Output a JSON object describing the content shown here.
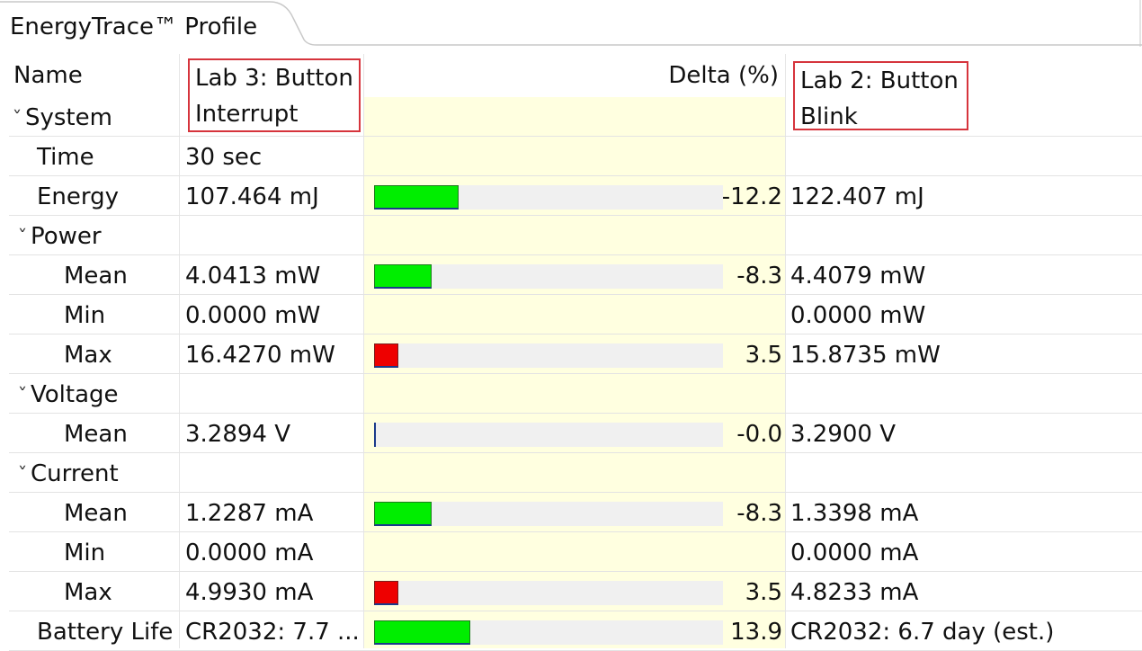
{
  "tab": {
    "title": "EnergyTrace™ Profile"
  },
  "header": {
    "name": "Name",
    "col_a": "Lab 3: Button Interrupt",
    "delta": "Delta (%)",
    "col_b": "Lab 2: Button Blink"
  },
  "rows": [
    {
      "name": "System",
      "indent": 0,
      "expander": "chevron-down",
      "a": "",
      "delta": "",
      "b": "",
      "bar": null
    },
    {
      "name": "Time",
      "indent": 1,
      "a": "30 sec",
      "delta": "",
      "b": "",
      "bar": null
    },
    {
      "name": "Energy",
      "indent": 1,
      "a": "107.464 mJ",
      "delta": "-12.2",
      "b": "122.407 mJ",
      "bar": 12.2,
      "bar_sign": "neg"
    },
    {
      "name": "Power",
      "indent": 1,
      "expander": "chevron-down",
      "a": "",
      "delta": "",
      "b": "",
      "bar": null
    },
    {
      "name": "Mean",
      "indent": 2,
      "a": "4.0413 mW",
      "delta": "-8.3",
      "b": "4.4079 mW",
      "bar": 8.3,
      "bar_sign": "neg"
    },
    {
      "name": "Min",
      "indent": 2,
      "a": "0.0000 mW",
      "delta": "",
      "b": "0.0000 mW",
      "bar": null
    },
    {
      "name": "Max",
      "indent": 2,
      "a": "16.4270 mW",
      "delta": "3.5",
      "b": "15.8735 mW",
      "bar": 3.5,
      "bar_sign": "pos"
    },
    {
      "name": "Voltage",
      "indent": 1,
      "expander": "chevron-down",
      "a": "",
      "delta": "",
      "b": "",
      "bar": null
    },
    {
      "name": "Mean",
      "indent": 2,
      "a": "3.2894 V",
      "delta": "-0.0",
      "b": "3.2900 V",
      "bar": 0.0,
      "bar_sign": "zero"
    },
    {
      "name": "Current",
      "indent": 1,
      "expander": "chevron-down",
      "a": "",
      "delta": "",
      "b": "",
      "bar": null
    },
    {
      "name": "Mean",
      "indent": 2,
      "a": "1.2287 mA",
      "delta": "-8.3",
      "b": "1.3398 mA",
      "bar": 8.3,
      "bar_sign": "neg"
    },
    {
      "name": "Min",
      "indent": 2,
      "a": "0.0000 mA",
      "delta": "",
      "b": "0.0000 mA",
      "bar": null
    },
    {
      "name": "Max",
      "indent": 2,
      "a": "4.9930 mA",
      "delta": "3.5",
      "b": "4.8233 mA",
      "bar": 3.5,
      "bar_sign": "pos"
    },
    {
      "name": "Battery Life",
      "indent": 1,
      "a": "CR2032: 7.7 ...",
      "delta": "13.9",
      "b": "CR2032: 6.7 day (est.)",
      "bar": 13.9,
      "bar_sign": "neg"
    }
  ],
  "colors": {
    "bar_green": "#00ee00",
    "bar_red": "#ee0000",
    "delta_bg": "#ffffe0",
    "highlight_box": "#d6343c"
  }
}
